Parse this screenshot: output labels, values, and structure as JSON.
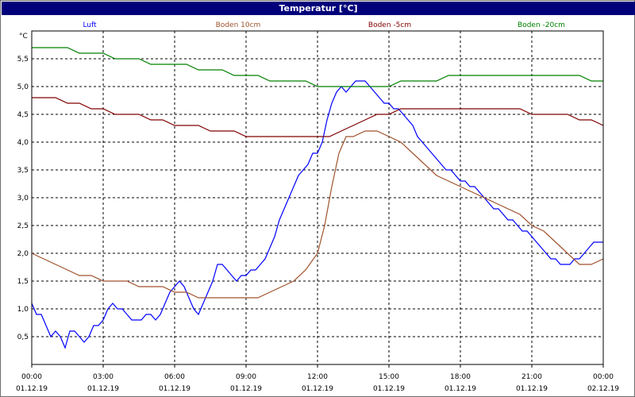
{
  "window": {
    "title": "Temperatur [°C]"
  },
  "chart_data": {
    "type": "line",
    "title": "Temperatur [°C]",
    "ylabel": "°C",
    "xlabel": "",
    "ylim": [
      0,
      6
    ],
    "xlim": [
      0,
      24
    ],
    "grid": true,
    "legend_position": "top",
    "y_ticks": [
      "0,5",
      "1,0",
      "1,5",
      "2,0",
      "2,5",
      "3,0",
      "3,5",
      "4,0",
      "4,5",
      "5,0",
      "5,5"
    ],
    "x_ticks": [
      {
        "time": "00:00",
        "date": "01.12.19"
      },
      {
        "time": "03:00",
        "date": "01.12.19"
      },
      {
        "time": "06:00",
        "date": "01.12.19"
      },
      {
        "time": "09:00",
        "date": "01.12.19"
      },
      {
        "time": "12:00",
        "date": "01.12.19"
      },
      {
        "time": "15:00",
        "date": "01.12.19"
      },
      {
        "time": "18:00",
        "date": "01.12.19"
      },
      {
        "time": "21:00",
        "date": "01.12.19"
      },
      {
        "time": "00:00",
        "date": "02.12.19"
      }
    ],
    "series": [
      {
        "name": "Luft",
        "color": "#0000ff",
        "x": [
          0.0,
          0.2,
          0.4,
          0.6,
          0.8,
          1.0,
          1.2,
          1.4,
          1.6,
          1.8,
          2.0,
          2.2,
          2.4,
          2.6,
          2.8,
          3.0,
          3.2,
          3.4,
          3.6,
          3.8,
          4.0,
          4.2,
          4.4,
          4.6,
          4.8,
          5.0,
          5.2,
          5.4,
          5.6,
          5.8,
          6.0,
          6.2,
          6.4,
          6.6,
          6.8,
          7.0,
          7.2,
          7.4,
          7.6,
          7.8,
          8.0,
          8.2,
          8.4,
          8.6,
          8.8,
          9.0,
          9.2,
          9.4,
          9.6,
          9.8,
          10.0,
          10.2,
          10.4,
          10.6,
          10.8,
          11.0,
          11.2,
          11.4,
          11.6,
          11.8,
          12.0,
          12.2,
          12.4,
          12.6,
          12.8,
          13.0,
          13.2,
          13.4,
          13.6,
          13.8,
          14.0,
          14.2,
          14.4,
          14.6,
          14.8,
          15.0,
          15.2,
          15.4,
          15.6,
          15.8,
          16.0,
          16.2,
          16.4,
          16.6,
          16.8,
          17.0,
          17.2,
          17.4,
          17.6,
          17.8,
          18.0,
          18.2,
          18.4,
          18.6,
          18.8,
          19.0,
          19.2,
          19.4,
          19.6,
          19.8,
          20.0,
          20.2,
          20.4,
          20.6,
          20.8,
          21.0,
          21.2,
          21.4,
          21.6,
          21.8,
          22.0,
          22.2,
          22.4,
          22.6,
          22.8,
          23.0,
          23.2,
          23.4,
          23.6,
          23.8,
          24.0
        ],
        "y": [
          1.1,
          0.9,
          0.9,
          0.7,
          0.5,
          0.6,
          0.5,
          0.3,
          0.6,
          0.6,
          0.5,
          0.4,
          0.5,
          0.7,
          0.7,
          0.8,
          1.0,
          1.1,
          1.0,
          1.0,
          0.9,
          0.8,
          0.8,
          0.8,
          0.9,
          0.9,
          0.8,
          0.9,
          1.1,
          1.3,
          1.4,
          1.5,
          1.4,
          1.2,
          1.0,
          0.9,
          1.1,
          1.3,
          1.5,
          1.8,
          1.8,
          1.7,
          1.6,
          1.5,
          1.6,
          1.6,
          1.7,
          1.7,
          1.8,
          1.9,
          2.1,
          2.3,
          2.6,
          2.8,
          3.0,
          3.2,
          3.4,
          3.5,
          3.6,
          3.8,
          3.8,
          4.0,
          4.4,
          4.7,
          4.9,
          5.0,
          4.9,
          5.0,
          5.1,
          5.1,
          5.1,
          5.0,
          4.9,
          4.8,
          4.7,
          4.7,
          4.6,
          4.6,
          4.5,
          4.4,
          4.3,
          4.1,
          4.0,
          3.9,
          3.8,
          3.7,
          3.6,
          3.5,
          3.5,
          3.4,
          3.3,
          3.3,
          3.2,
          3.2,
          3.1,
          3.0,
          2.9,
          2.8,
          2.8,
          2.7,
          2.6,
          2.6,
          2.5,
          2.4,
          2.4,
          2.3,
          2.2,
          2.1,
          2.0,
          1.9,
          1.9,
          1.8,
          1.8,
          1.8,
          1.9,
          1.9,
          2.0,
          2.1,
          2.2,
          2.2,
          2.2
        ]
      },
      {
        "name": "Boden 10cm",
        "color": "#a0522d",
        "x": [
          0.0,
          0.5,
          1.0,
          1.5,
          2.0,
          2.5,
          3.0,
          3.5,
          4.0,
          4.5,
          5.0,
          5.5,
          6.0,
          6.5,
          7.0,
          7.5,
          8.0,
          8.5,
          9.0,
          9.5,
          10.0,
          10.5,
          11.0,
          11.5,
          12.0,
          12.3,
          12.6,
          12.9,
          13.2,
          13.5,
          14.0,
          14.5,
          15.0,
          15.5,
          16.0,
          16.5,
          17.0,
          17.5,
          18.0,
          18.5,
          19.0,
          19.5,
          20.0,
          20.5,
          21.0,
          21.5,
          22.0,
          22.5,
          23.0,
          23.5,
          24.0
        ],
        "y": [
          2.0,
          1.9,
          1.8,
          1.7,
          1.6,
          1.6,
          1.5,
          1.5,
          1.5,
          1.4,
          1.4,
          1.4,
          1.3,
          1.3,
          1.2,
          1.2,
          1.2,
          1.2,
          1.2,
          1.2,
          1.3,
          1.4,
          1.5,
          1.7,
          2.0,
          2.5,
          3.2,
          3.8,
          4.1,
          4.1,
          4.2,
          4.2,
          4.1,
          4.0,
          3.8,
          3.6,
          3.4,
          3.3,
          3.2,
          3.1,
          3.0,
          2.9,
          2.8,
          2.7,
          2.5,
          2.4,
          2.2,
          2.0,
          1.8,
          1.8,
          1.9
        ]
      },
      {
        "name": "Boden -5cm",
        "color": "#800000",
        "x": [
          0.0,
          0.5,
          1.0,
          1.5,
          2.0,
          2.5,
          3.0,
          3.5,
          4.0,
          4.5,
          5.0,
          5.5,
          6.0,
          6.5,
          7.0,
          7.5,
          8.0,
          8.5,
          9.0,
          9.5,
          10.0,
          10.5,
          11.0,
          11.5,
          12.0,
          12.5,
          13.0,
          13.5,
          14.0,
          14.5,
          15.0,
          15.5,
          16.0,
          16.5,
          17.0,
          17.5,
          18.0,
          18.5,
          19.0,
          19.5,
          20.0,
          20.5,
          21.0,
          21.5,
          22.0,
          22.5,
          23.0,
          23.5,
          24.0
        ],
        "y": [
          4.8,
          4.8,
          4.8,
          4.7,
          4.7,
          4.6,
          4.6,
          4.5,
          4.5,
          4.5,
          4.4,
          4.4,
          4.3,
          4.3,
          4.3,
          4.2,
          4.2,
          4.2,
          4.1,
          4.1,
          4.1,
          4.1,
          4.1,
          4.1,
          4.1,
          4.1,
          4.2,
          4.3,
          4.4,
          4.5,
          4.5,
          4.6,
          4.6,
          4.6,
          4.6,
          4.6,
          4.6,
          4.6,
          4.6,
          4.6,
          4.6,
          4.6,
          4.5,
          4.5,
          4.5,
          4.5,
          4.4,
          4.4,
          4.3
        ]
      },
      {
        "name": "Boden -20cm",
        "color": "#008000",
        "x": [
          0.0,
          0.5,
          1.0,
          1.5,
          2.0,
          2.5,
          3.0,
          3.5,
          4.0,
          4.5,
          5.0,
          5.5,
          6.0,
          6.5,
          7.0,
          7.5,
          8.0,
          8.5,
          9.0,
          9.5,
          10.0,
          10.5,
          11.0,
          11.5,
          12.0,
          12.5,
          13.0,
          13.5,
          14.0,
          14.5,
          15.0,
          15.5,
          16.0,
          16.5,
          17.0,
          17.5,
          18.0,
          18.5,
          19.0,
          19.5,
          20.0,
          20.5,
          21.0,
          21.5,
          22.0,
          22.5,
          23.0,
          23.5,
          24.0
        ],
        "y": [
          5.7,
          5.7,
          5.7,
          5.7,
          5.6,
          5.6,
          5.6,
          5.5,
          5.5,
          5.5,
          5.4,
          5.4,
          5.4,
          5.4,
          5.3,
          5.3,
          5.3,
          5.2,
          5.2,
          5.2,
          5.1,
          5.1,
          5.1,
          5.1,
          5.0,
          5.0,
          5.0,
          5.0,
          5.0,
          5.0,
          5.0,
          5.1,
          5.1,
          5.1,
          5.1,
          5.2,
          5.2,
          5.2,
          5.2,
          5.2,
          5.2,
          5.2,
          5.2,
          5.2,
          5.2,
          5.2,
          5.2,
          5.1,
          5.1
        ]
      }
    ]
  }
}
